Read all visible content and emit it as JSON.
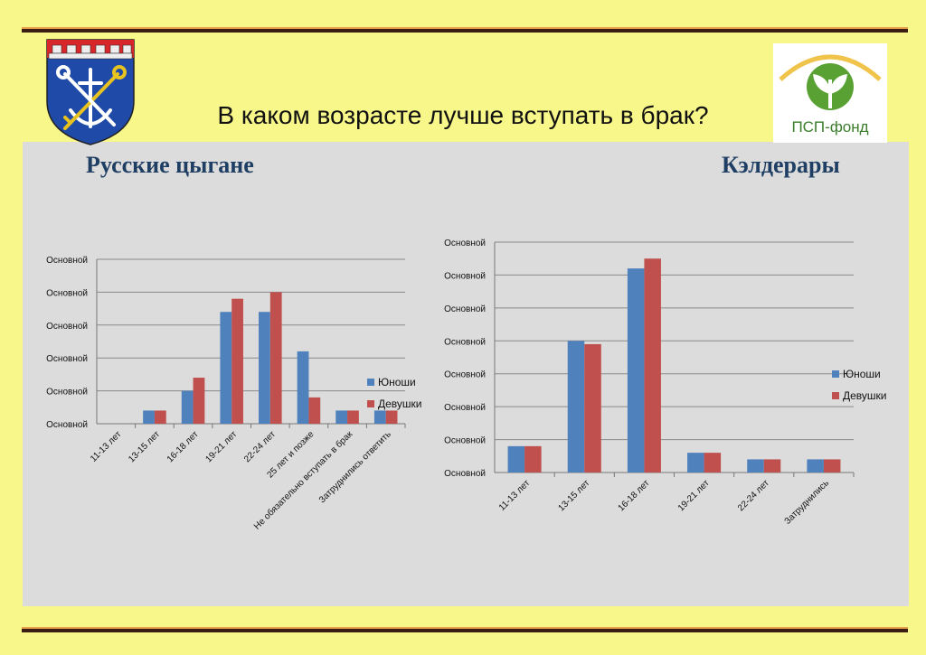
{
  "slide": {
    "title": "В каком возрасте лучше вступать в брак?",
    "logo_text": "ПСП-фонд"
  },
  "colors": {
    "background": "#f8f78a",
    "panel": "#dcdcdc",
    "boys": "#4f81bd",
    "girls": "#c0504d",
    "heading": "#1f3e63"
  },
  "chart_data": [
    {
      "type": "bar",
      "title": "Русские цыгане",
      "categories": [
        "11-13 лет",
        "13-15 лет",
        "16-18 лет",
        "19-21 лет",
        "22-24 лет",
        "25 лет и позже",
        "Не обязательно вступать в брак",
        "Затруднились ответить"
      ],
      "series": [
        {
          "name": "Юноши",
          "values": [
            0,
            4,
            10,
            34,
            34,
            22,
            4,
            4
          ]
        },
        {
          "name": "Девушки",
          "values": [
            0,
            4,
            14,
            38,
            40,
            8,
            4,
            4
          ]
        }
      ],
      "y_tick_labels": [
        "Основной",
        "Основной",
        "Основной",
        "Основной",
        "Основной",
        "Основной"
      ],
      "ylim": [
        0,
        50
      ],
      "legend": "right",
      "grid": true
    },
    {
      "type": "bar",
      "title": "Кэлдерары",
      "categories": [
        "11-13 лет",
        "13-15 лет",
        "16-18 лет",
        "19-21 лет",
        "22-24 лет",
        "Затруднились"
      ],
      "series": [
        {
          "name": "Юноши",
          "values": [
            8,
            40,
            62,
            6,
            4,
            4
          ]
        },
        {
          "name": "Девушки",
          "values": [
            8,
            39,
            65,
            6,
            4,
            4
          ]
        }
      ],
      "y_tick_labels": [
        "Основной",
        "Основной",
        "Основной",
        "Основной",
        "Основной",
        "Основной",
        "Основной",
        "Основной"
      ],
      "ylim": [
        0,
        70
      ],
      "legend": "right",
      "grid": true
    }
  ]
}
